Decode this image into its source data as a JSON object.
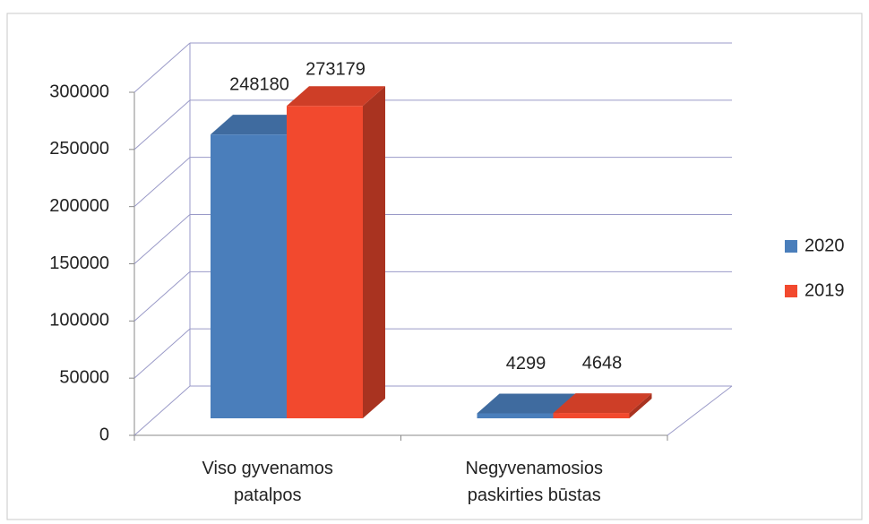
{
  "chart_data": {
    "type": "bar3d",
    "categories": [
      "Viso gyvenamos patalpos",
      "Negyvenamosios paskirties būstas"
    ],
    "series": [
      {
        "name": "2020",
        "color": "#4a7ebb",
        "values": [
          248180,
          4299
        ]
      },
      {
        "name": "2019",
        "color": "#f2492e",
        "values": [
          273179,
          4648
        ]
      }
    ],
    "ylim": [
      0,
      300000
    ],
    "yticks": [
      0,
      50000,
      100000,
      150000,
      200000,
      250000,
      300000
    ],
    "grid": true,
    "legend": "right"
  }
}
